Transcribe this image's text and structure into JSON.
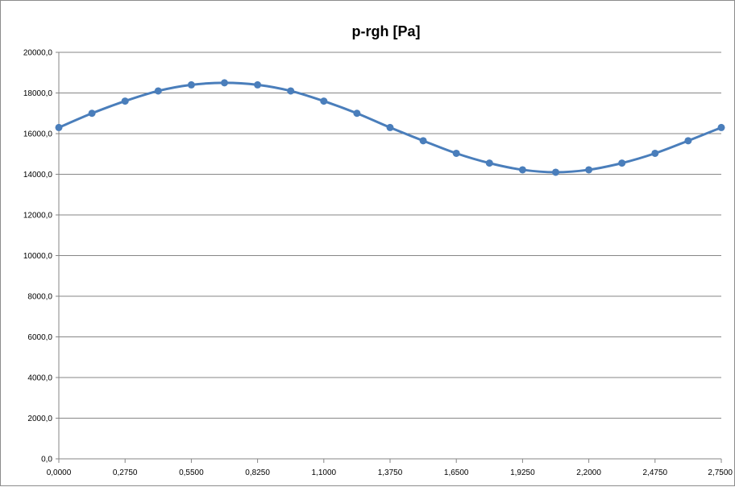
{
  "chart_data": {
    "type": "line",
    "title": "p-rgh [Pa]",
    "xlabel": "",
    "ylabel": "",
    "xlim": [
      0,
      2.75
    ],
    "ylim": [
      0,
      20000
    ],
    "grid": true,
    "legend": "none",
    "x_ticks": [
      0,
      0.275,
      0.55,
      0.825,
      1.1,
      1.375,
      1.65,
      1.925,
      2.2,
      2.475,
      2.75
    ],
    "x_tick_labels": [
      "0,0000",
      "0,2750",
      "0,5500",
      "0,8250",
      "1,1000",
      "1,3750",
      "1,6500",
      "1,9250",
      "2,2000",
      "2,4750",
      "2,7500"
    ],
    "y_ticks": [
      0,
      2000,
      4000,
      6000,
      8000,
      10000,
      12000,
      14000,
      16000,
      18000,
      20000
    ],
    "y_tick_labels": [
      "0,0",
      "2000,0",
      "4000,0",
      "6000,0",
      "8000,0",
      "10000,0",
      "12000,0",
      "14000,0",
      "16000,0",
      "18000,0",
      "20000,0"
    ],
    "series": [
      {
        "color": "#4a7ebb",
        "x": [
          0,
          0.1375,
          0.275,
          0.4125,
          0.55,
          0.6875,
          0.825,
          0.9625,
          1.1,
          1.2375,
          1.375,
          1.5125,
          1.65,
          1.7875,
          1.925,
          2.0625,
          2.2,
          2.3375,
          2.475,
          2.6125,
          2.75
        ],
        "y": [
          16300,
          17000,
          17600,
          18100,
          18400,
          18500,
          18400,
          18100,
          17600,
          17000,
          16300,
          15650,
          15030,
          14550,
          14220,
          14100,
          14220,
          14550,
          15030,
          15650,
          16300
        ]
      }
    ]
  }
}
